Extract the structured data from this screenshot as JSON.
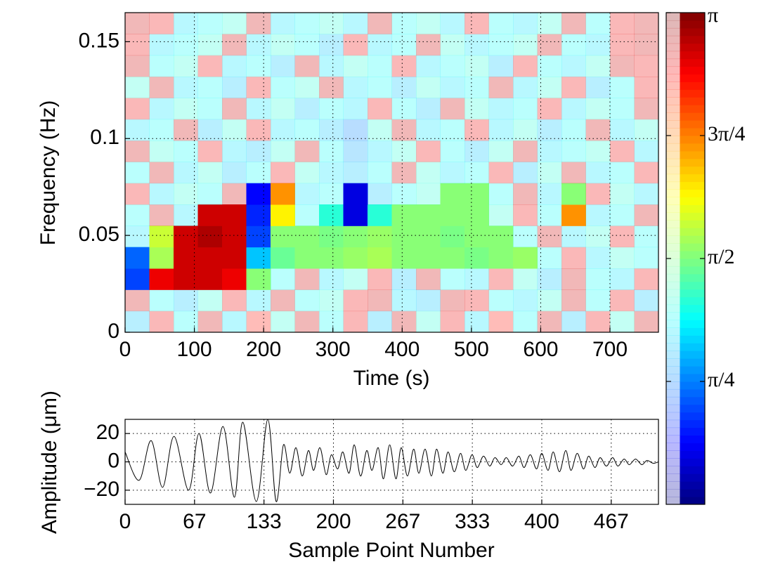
{
  "chart_data": [
    {
      "type": "heatmap",
      "xlabel": "Time (s)",
      "ylabel": "Frequency (Hz)",
      "xlim": [
        0,
        770
      ],
      "ylim": [
        0,
        0.165
      ],
      "xticks": [
        0,
        100,
        200,
        300,
        400,
        500,
        600,
        700
      ],
      "yticks": [
        0,
        0.05,
        0.1,
        0.15
      ],
      "grid": true,
      "xbins": [
        0,
        35,
        70,
        105,
        140,
        175,
        210,
        245,
        280,
        315,
        350,
        385,
        420,
        455,
        490,
        525,
        560,
        595,
        630,
        665,
        700,
        735,
        770
      ],
      "ybins": [
        0,
        0.011,
        0.022,
        0.033,
        0.044,
        0.055,
        0.066,
        0.077,
        0.088,
        0.099,
        0.11,
        0.121,
        0.132,
        0.143,
        0.154,
        0.165
      ],
      "z": [
        [
          1.0,
          2.8,
          1.2,
          2.9,
          1.1,
          2.7,
          1.3,
          2.9,
          1.2,
          2.8,
          1.0,
          2.9,
          1.3,
          2.8,
          1.1,
          2.7,
          1.2,
          2.9,
          1.0,
          2.8,
          1.3,
          2.9
        ],
        [
          2.9,
          1.2,
          1.0,
          1.3,
          2.8,
          1.1,
          2.9,
          1.2,
          1.3,
          2.8,
          2.9,
          1.1,
          1.0,
          2.9,
          2.8,
          1.2,
          1.1,
          1.3,
          2.9,
          1.2,
          2.8,
          1.0
        ],
        [
          0.6,
          2.8,
          2.9,
          2.9,
          2.8,
          1.6,
          1.2,
          2.9,
          1.1,
          1.3,
          2.8,
          1.0,
          2.9,
          1.2,
          1.1,
          2.8,
          1.3,
          1.0,
          2.9,
          1.2,
          1.1,
          2.8
        ],
        [
          0.7,
          1.7,
          2.9,
          2.9,
          2.9,
          1.0,
          1.5,
          1.6,
          1.6,
          1.65,
          1.7,
          1.6,
          1.6,
          1.6,
          1.55,
          1.6,
          1.65,
          1.2,
          2.8,
          1.1,
          1.3,
          1.2
        ],
        [
          1.1,
          1.8,
          2.9,
          3.0,
          2.9,
          0.6,
          1.6,
          1.6,
          1.55,
          1.6,
          1.65,
          1.6,
          1.6,
          1.55,
          1.6,
          1.6,
          1.2,
          2.9,
          1.1,
          1.3,
          2.8,
          1.2
        ],
        [
          1.2,
          2.9,
          1.1,
          2.9,
          2.9,
          0.5,
          2.0,
          1.2,
          1.3,
          0.3,
          1.3,
          1.6,
          1.6,
          1.6,
          1.6,
          1.3,
          2.8,
          1.2,
          2.3,
          1.1,
          1.2,
          2.9
        ],
        [
          2.8,
          1.1,
          1.3,
          1.2,
          2.9,
          0.4,
          2.3,
          1.1,
          1.2,
          0.3,
          1.0,
          1.2,
          1.3,
          1.6,
          1.6,
          1.2,
          2.9,
          1.1,
          1.6,
          2.8,
          1.3,
          1.1
        ],
        [
          1.2,
          2.9,
          1.1,
          1.3,
          1.0,
          1.2,
          2.8,
          1.3,
          1.1,
          1.0,
          1.2,
          2.9,
          1.3,
          1.1,
          1.2,
          2.8,
          1.0,
          1.3,
          2.9,
          1.1,
          1.2,
          2.8
        ],
        [
          2.9,
          1.3,
          1.2,
          2.8,
          1.1,
          1.0,
          1.3,
          2.9,
          1.2,
          0.9,
          1.1,
          1.3,
          2.8,
          1.2,
          1.0,
          1.3,
          2.9,
          1.1,
          1.2,
          1.3,
          2.8,
          1.1
        ],
        [
          1.1,
          1.2,
          2.9,
          1.0,
          1.3,
          2.8,
          1.1,
          1.2,
          1.0,
          0.8,
          1.3,
          2.9,
          1.1,
          1.2,
          2.8,
          1.1,
          1.3,
          1.0,
          1.2,
          2.9,
          1.1,
          1.3
        ],
        [
          2.8,
          1.1,
          1.3,
          1.2,
          2.9,
          1.1,
          1.3,
          1.0,
          1.2,
          1.1,
          2.8,
          1.2,
          1.0,
          2.9,
          1.3,
          1.1,
          1.2,
          2.8,
          1.1,
          1.3,
          1.2,
          2.9
        ],
        [
          1.3,
          2.9,
          1.1,
          1.2,
          1.0,
          2.8,
          1.2,
          1.3,
          2.9,
          1.1,
          1.2,
          1.0,
          1.3,
          1.1,
          1.2,
          2.9,
          1.1,
          1.3,
          2.8,
          1.0,
          1.2,
          2.8
        ],
        [
          2.9,
          1.2,
          1.3,
          2.8,
          1.1,
          1.2,
          1.0,
          2.9,
          1.1,
          1.3,
          1.2,
          2.8,
          1.1,
          1.2,
          1.3,
          1.0,
          2.8,
          1.2,
          1.1,
          1.3,
          2.9,
          2.8
        ],
        [
          2.8,
          1.1,
          1.2,
          1.3,
          2.9,
          1.1,
          1.3,
          1.2,
          1.0,
          2.8,
          1.1,
          1.2,
          2.9,
          1.3,
          1.1,
          1.2,
          1.3,
          2.9,
          1.2,
          1.1,
          2.8,
          2.9
        ],
        [
          2.9,
          2.8,
          1.1,
          1.2,
          1.3,
          2.9,
          1.1,
          1.2,
          1.3,
          1.1,
          2.9,
          1.2,
          1.3,
          1.1,
          2.8,
          1.2,
          1.1,
          1.3,
          2.9,
          1.2,
          2.8,
          2.9
        ]
      ],
      "significant": [
        [
          0,
          0,
          0,
          0,
          0,
          0,
          0,
          0,
          0,
          0,
          0,
          0,
          0,
          0,
          0,
          0,
          0,
          0,
          0,
          0,
          0,
          0
        ],
        [
          0,
          0,
          0,
          0,
          0,
          0,
          0,
          0,
          0,
          0,
          0,
          0,
          0,
          0,
          0,
          0,
          0,
          0,
          0,
          0,
          0,
          0
        ],
        [
          1,
          1,
          1,
          1,
          1,
          1,
          0,
          0,
          0,
          0,
          0,
          0,
          0,
          0,
          0,
          0,
          0,
          0,
          0,
          0,
          0,
          0
        ],
        [
          1,
          1,
          1,
          1,
          1,
          1,
          1,
          1,
          1,
          1,
          1,
          1,
          1,
          1,
          1,
          1,
          1,
          0,
          0,
          0,
          0,
          0
        ],
        [
          0,
          1,
          1,
          1,
          1,
          1,
          1,
          1,
          1,
          1,
          1,
          1,
          1,
          1,
          1,
          1,
          0,
          0,
          0,
          0,
          0,
          0
        ],
        [
          0,
          0,
          0,
          1,
          1,
          1,
          1,
          0,
          1,
          1,
          1,
          1,
          1,
          1,
          1,
          0,
          0,
          0,
          1,
          0,
          0,
          0
        ],
        [
          0,
          0,
          0,
          0,
          0,
          1,
          1,
          0,
          0,
          1,
          0,
          0,
          0,
          1,
          1,
          0,
          0,
          0,
          1,
          0,
          0,
          0
        ],
        [
          0,
          0,
          0,
          0,
          0,
          0,
          0,
          0,
          0,
          0,
          0,
          0,
          0,
          0,
          0,
          0,
          0,
          0,
          0,
          0,
          0,
          0
        ],
        [
          0,
          0,
          0,
          0,
          0,
          0,
          0,
          0,
          0,
          0,
          0,
          0,
          0,
          0,
          0,
          0,
          0,
          0,
          0,
          0,
          0,
          0
        ],
        [
          0,
          0,
          0,
          0,
          0,
          0,
          0,
          0,
          0,
          0,
          0,
          0,
          0,
          0,
          0,
          0,
          0,
          0,
          0,
          0,
          0,
          0
        ],
        [
          0,
          0,
          0,
          0,
          0,
          0,
          0,
          0,
          0,
          0,
          0,
          0,
          0,
          0,
          0,
          0,
          0,
          0,
          0,
          0,
          0,
          0
        ],
        [
          0,
          0,
          0,
          0,
          0,
          0,
          0,
          0,
          0,
          0,
          0,
          0,
          0,
          0,
          0,
          0,
          0,
          0,
          0,
          0,
          0,
          0
        ],
        [
          0,
          0,
          0,
          0,
          0,
          0,
          0,
          0,
          0,
          0,
          0,
          0,
          0,
          0,
          0,
          0,
          0,
          0,
          0,
          0,
          0,
          0
        ],
        [
          0,
          0,
          0,
          0,
          0,
          0,
          0,
          0,
          0,
          0,
          0,
          0,
          0,
          0,
          0,
          0,
          0,
          0,
          0,
          0,
          0,
          0
        ],
        [
          0,
          0,
          0,
          0,
          0,
          0,
          0,
          0,
          0,
          0,
          0,
          0,
          0,
          0,
          0,
          0,
          0,
          0,
          0,
          0,
          0,
          0
        ]
      ]
    },
    {
      "type": "colorbar",
      "colormap": "jet",
      "ylim": [
        0,
        3.1416
      ],
      "yticks": [
        {
          "value": 0.7854,
          "label": "π/4"
        },
        {
          "value": 1.5708,
          "label": "π/2"
        },
        {
          "value": 2.3562,
          "label": "3π/4"
        },
        {
          "value": 3.1416,
          "label": "π"
        }
      ]
    },
    {
      "type": "line",
      "xlabel": "Sample Point Number",
      "ylabel": "Amplitude (μm)",
      "xlim": [
        0,
        512
      ],
      "ylim": [
        -30,
        30
      ],
      "grid": true,
      "xticks": [
        0,
        {
          "value": 66.67,
          "label": "67"
        },
        {
          "value": 133.33,
          "label": "133"
        },
        200,
        {
          "value": 266.67,
          "label": "267"
        },
        {
          "value": 333.33,
          "label": "333"
        },
        400,
        {
          "value": 466.67,
          "label": "467"
        }
      ],
      "yticks": [
        {
          "value": -20,
          "label": "−20"
        },
        0,
        20
      ],
      "series": [
        {
          "color": "#000000",
          "x": [
            0,
            13.5,
            25,
            36,
            47,
            61,
            71,
            82,
            94,
            105,
            113,
            126,
            137,
            145,
            152,
            158,
            164,
            170,
            176,
            181,
            187,
            193,
            198,
            204,
            209,
            215,
            220,
            226,
            232,
            237,
            243,
            248,
            254,
            260,
            265,
            271,
            277,
            282,
            288,
            294,
            299,
            305,
            310,
            316,
            322,
            327,
            333,
            338,
            344,
            350,
            355,
            361,
            366,
            372,
            378,
            383,
            389,
            395,
            400,
            406,
            411,
            417,
            423,
            428,
            434,
            440,
            445,
            451,
            456,
            462,
            468,
            473,
            479,
            484,
            490,
            496,
            501,
            507,
            512
          ],
          "values": [
            7,
            -13,
            15,
            -18,
            18,
            -20,
            20,
            -22,
            25,
            -25,
            28,
            -28,
            30,
            -28,
            12,
            -8,
            10,
            -10,
            8,
            -6,
            10,
            -9,
            5,
            -5,
            7,
            -8,
            12,
            -10,
            8,
            -6,
            10,
            -12,
            12,
            -12,
            10,
            -10,
            9,
            -8,
            9,
            -10,
            9,
            -8,
            7,
            -7,
            6,
            -6,
            5,
            -4,
            4,
            -3,
            3,
            -2,
            3,
            -3,
            4,
            -4,
            5,
            -5,
            6,
            -6,
            7,
            -7,
            8,
            -6,
            6,
            -5,
            4,
            -4,
            3,
            -3,
            3,
            -3,
            2,
            -2,
            2,
            -2,
            1,
            -1,
            0
          ]
        }
      ]
    }
  ]
}
